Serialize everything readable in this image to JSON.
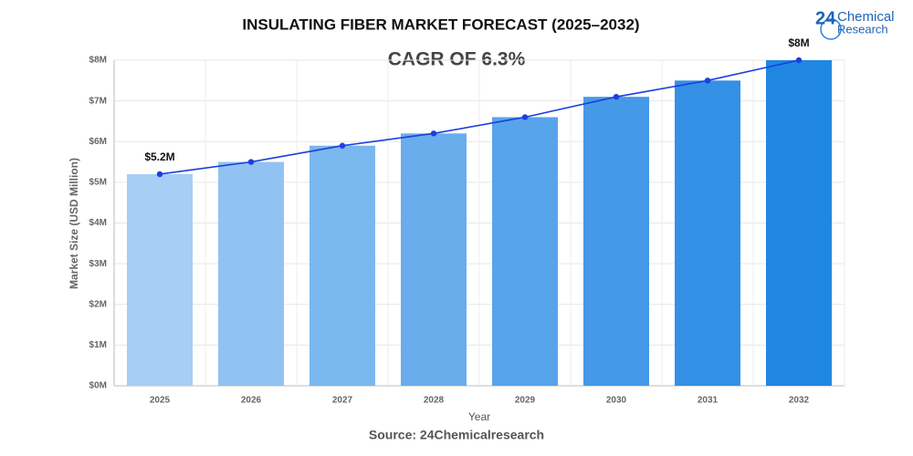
{
  "chart_data": {
    "type": "bar",
    "title": "INSULATING FIBER MARKET FORECAST (2025–2032)",
    "subtitle": "CAGR OF 6.3%",
    "x_label": "Year",
    "y_label": "Market Size (USD Million)",
    "source": "Source: 24Chemicalresearch",
    "categories": [
      "2025",
      "2026",
      "2027",
      "2028",
      "2029",
      "2030",
      "2031",
      "2032"
    ],
    "values": [
      5.2,
      5.5,
      5.9,
      6.2,
      6.6,
      7.1,
      7.5,
      8
    ],
    "value_labels": [
      "$5.2M",
      null,
      null,
      null,
      null,
      null,
      null,
      "$8M"
    ],
    "colors": [
      "#a7cef5",
      "#91c3f2",
      "#7bb7ef",
      "#69adec",
      "#58a4ea",
      "#4699e7",
      "#3490e5",
      "#1f87e2"
    ],
    "line_color": "#1c3fde",
    "ylim": [
      0,
      8
    ],
    "yticks": [
      {
        "value": 0,
        "label": "$0M"
      },
      {
        "value": 1,
        "label": "$1M"
      },
      {
        "value": 2,
        "label": "$2M"
      },
      {
        "value": 3,
        "label": "$3M"
      },
      {
        "value": 4,
        "label": "$4M"
      },
      {
        "value": 5,
        "label": "$5M"
      },
      {
        "value": 6,
        "label": "$6M"
      },
      {
        "value": 7,
        "label": "$7M"
      },
      {
        "value": 8,
        "label": "$8M"
      }
    ],
    "grid": true
  },
  "logo": {
    "number": "24",
    "name": "Chemical",
    "sub": "Research"
  }
}
